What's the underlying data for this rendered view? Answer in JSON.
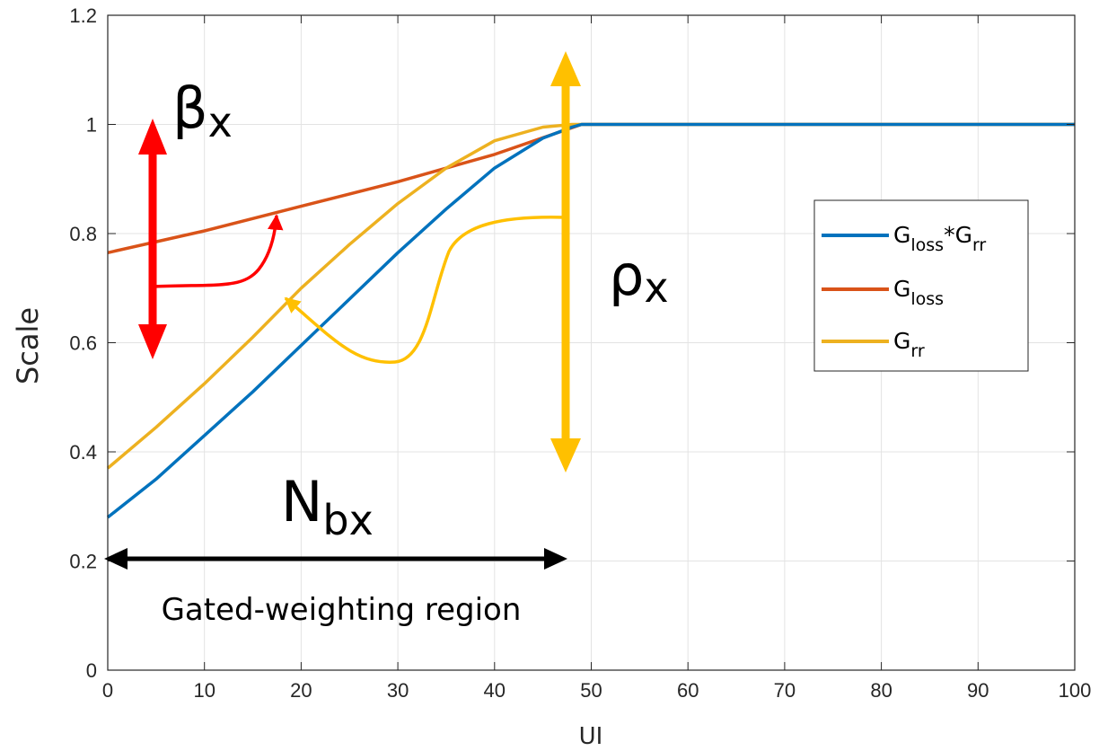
{
  "chart_data": {
    "type": "line",
    "title": "",
    "xlabel": "UI",
    "ylabel": "Scale",
    "xlim": [
      0,
      100
    ],
    "ylim": [
      0,
      1.2
    ],
    "grid": true,
    "legend_position": "right",
    "x_ticks": [
      "0",
      "10",
      "20",
      "30",
      "40",
      "50",
      "60",
      "70",
      "80",
      "90",
      "100"
    ],
    "y_ticks": [
      "0",
      "0.2",
      "0.4",
      "0.6",
      "0.8",
      "1",
      "1.2"
    ],
    "x_tick_values": [
      0,
      10,
      20,
      30,
      40,
      50,
      60,
      70,
      80,
      90,
      100
    ],
    "y_tick_values": [
      0,
      0.2,
      0.4,
      0.6,
      0.8,
      1.0,
      1.2
    ],
    "series": [
      {
        "name_main": "G",
        "name_sub": "loss",
        "name_mid": "*G",
        "name_sub2": "rr",
        "color": "#0072BD",
        "x": [
          0,
          5,
          10,
          15,
          20,
          25,
          30,
          35,
          40,
          45,
          48,
          49,
          50,
          60,
          70,
          80,
          90,
          100
        ],
        "y": [
          0.28,
          0.35,
          0.43,
          0.51,
          0.595,
          0.68,
          0.765,
          0.845,
          0.92,
          0.975,
          0.995,
          1.0,
          1.0,
          1.0,
          1.0,
          1.0,
          1.0,
          1.0
        ]
      },
      {
        "name_main": "G",
        "name_sub": "loss",
        "color": "#D95319",
        "x": [
          0,
          10,
          20,
          30,
          40,
          49,
          50,
          60,
          70,
          80,
          90,
          100
        ],
        "y": [
          0.765,
          0.805,
          0.85,
          0.895,
          0.945,
          1.0,
          1.0,
          1.0,
          1.0,
          1.0,
          1.0,
          1.0
        ]
      },
      {
        "name_main": "G",
        "name_sub": "rr",
        "color": "#EDB120",
        "x": [
          0,
          5,
          10,
          15,
          20,
          25,
          30,
          35,
          40,
          45,
          48,
          50,
          60,
          70,
          80,
          90,
          100
        ],
        "y": [
          0.37,
          0.445,
          0.525,
          0.61,
          0.7,
          0.78,
          0.855,
          0.92,
          0.97,
          0.995,
          1.0,
          1.0,
          1.0,
          1.0,
          1.0,
          1.0,
          1.0
        ]
      }
    ],
    "annotations": {
      "beta": {
        "main": "β",
        "sub": "x"
      },
      "rho": {
        "main": "ρ",
        "sub": "x"
      },
      "nbx": {
        "main": "N",
        "sub": "bx"
      },
      "region_label": "Gated-weighting region"
    }
  }
}
